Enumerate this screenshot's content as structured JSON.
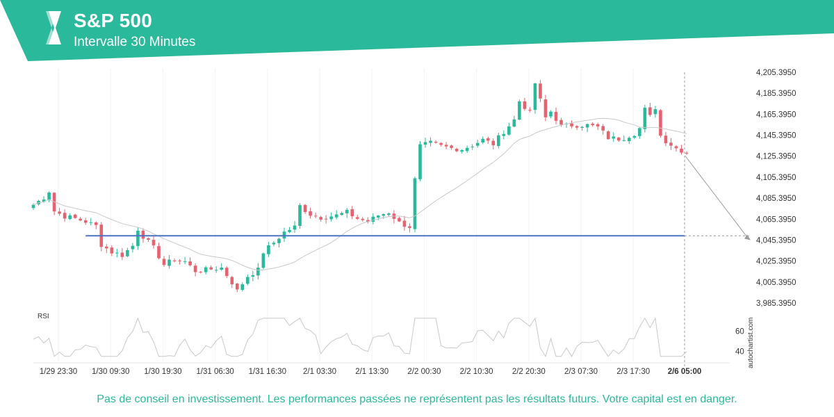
{
  "header": {
    "title": "S&P 500",
    "subtitle": "Intervalle 30 Minutes",
    "accent": "#2ab99a",
    "logo_icon": "autochartist-logo-icon"
  },
  "disclaimer": "Pas de conseil en investissement. Les performances passées ne représentent pas les résultats futurs. Votre capital est en danger.",
  "brand": "autochartist.com",
  "chart_data": {
    "type": "candlestick",
    "title": "S&P 500",
    "subtitle": "Intervalle 30 Minutes",
    "y_ticks": [
      "4,205.3950",
      "4,185.3950",
      "4,165.3950",
      "4,145.3950",
      "4,125.3950",
      "4,105.3950",
      "4,085.3950",
      "4,065.3950",
      "4,045.3950",
      "4,025.3950",
      "4,005.3950",
      "3,985.3950"
    ],
    "ylim": [
      3985.395,
      4205.395
    ],
    "x_ticks": [
      "1/29 23:30",
      "1/30 09:30",
      "1/30 19:30",
      "1/31 06:30",
      "1/31 16:30",
      "2/1 03:30",
      "2/1 13:30",
      "2/2 00:30",
      "2/2 10:30",
      "2/2 20:30",
      "2/3 07:30",
      "2/3 17:30",
      "2/6 05:00"
    ],
    "x_tick_positions": [
      0,
      10,
      20,
      30,
      40,
      50,
      60,
      70,
      80,
      90,
      100,
      110,
      124.5
    ],
    "n_candles": 126,
    "support_level": 4049.5,
    "support_start_index": 10,
    "forecast_target": 4045.395,
    "highlight_tick": "2/6 05:00",
    "rsi": {
      "label": "RSI",
      "ticks": [
        60,
        40
      ],
      "ylim": [
        30,
        75
      ]
    },
    "colors": {
      "up": "#2ab99a",
      "down": "#e5626e",
      "support": "#4a73c2",
      "moving_average": "#c8c8c8",
      "rsi_line": "#c8c8c8"
    },
    "close_anchors": [
      [
        0,
        4079
      ],
      [
        2,
        4086
      ],
      [
        3,
        4092
      ],
      [
        4,
        4073
      ],
      [
        6,
        4068
      ],
      [
        8,
        4066
      ],
      [
        10,
        4063
      ],
      [
        12,
        4059
      ],
      [
        13,
        4041
      ],
      [
        15,
        4034
      ],
      [
        17,
        4031
      ],
      [
        19,
        4040
      ],
      [
        20,
        4056
      ],
      [
        21,
        4049
      ],
      [
        23,
        4038
      ],
      [
        24,
        4030
      ],
      [
        25,
        4022
      ],
      [
        27,
        4027
      ],
      [
        29,
        4025
      ],
      [
        31,
        4016
      ],
      [
        33,
        4017
      ],
      [
        36,
        4019
      ],
      [
        38,
        4005
      ],
      [
        39,
        3997
      ],
      [
        41,
        4011
      ],
      [
        43,
        4017
      ],
      [
        44,
        4034
      ],
      [
        46,
        4043
      ],
      [
        48,
        4053
      ],
      [
        50,
        4058
      ],
      [
        51,
        4078
      ],
      [
        53,
        4070
      ],
      [
        55,
        4067
      ],
      [
        58,
        4069
      ],
      [
        60,
        4072
      ],
      [
        62,
        4066
      ],
      [
        64,
        4063
      ],
      [
        66,
        4069
      ],
      [
        68,
        4072
      ],
      [
        70,
        4062
      ],
      [
        72,
        4058
      ],
      [
        73,
        4103
      ],
      [
        74,
        4135
      ],
      [
        76,
        4138
      ],
      [
        78,
        4135
      ],
      [
        80,
        4133
      ],
      [
        82,
        4132
      ],
      [
        84,
        4136
      ],
      [
        86,
        4141
      ],
      [
        88,
        4137
      ],
      [
        90,
        4149
      ],
      [
        92,
        4160
      ],
      [
        93,
        4178
      ],
      [
        95,
        4167
      ],
      [
        96,
        4195
      ],
      [
        98,
        4162
      ],
      [
        99,
        4168
      ],
      [
        101,
        4154
      ],
      [
        103,
        4155
      ],
      [
        106,
        4155
      ],
      [
        108,
        4153
      ],
      [
        110,
        4143
      ],
      [
        112,
        4142
      ],
      [
        113,
        4143
      ],
      [
        115,
        4147
      ],
      [
        116,
        4152
      ],
      [
        117,
        4170
      ],
      [
        118,
        4163
      ],
      [
        119,
        4172
      ],
      [
        120,
        4145
      ],
      [
        121,
        4140
      ],
      [
        123,
        4133
      ],
      [
        125,
        4129
      ],
      [
        127,
        4122
      ],
      [
        129,
        4121
      ],
      [
        131,
        4120
      ]
    ]
  }
}
